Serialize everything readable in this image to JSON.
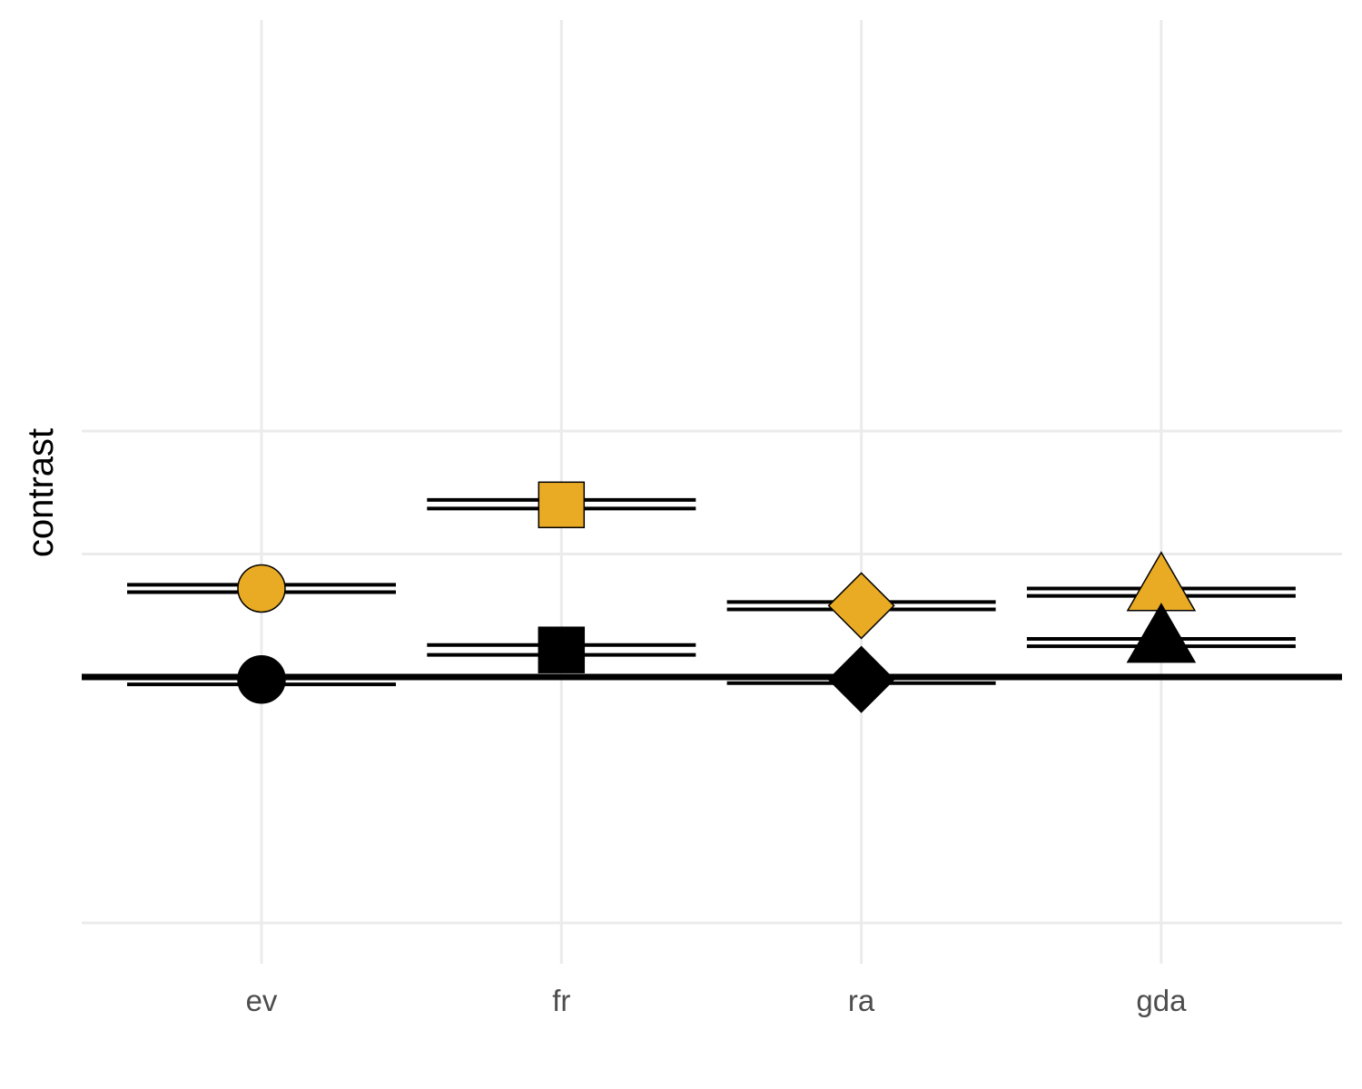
{
  "chart_data": {
    "type": "scatter",
    "title": "",
    "xlabel": "",
    "ylabel": "contrast",
    "categories": [
      "ev",
      "fr",
      "ra",
      "gda"
    ],
    "ylim": [
      -1.0,
      1.35
    ],
    "y_gridlines": [
      -1.0,
      0.0,
      0.5,
      1.0
    ],
    "reference_line": 0,
    "grid": true,
    "legend": "none",
    "colors": {
      "highlight": "#E9AB24",
      "base": "#000000",
      "grid": "#EBEBEB"
    },
    "series": [
      {
        "color": "#E9AB24",
        "points": [
          {
            "x": "ev",
            "y": 0.36,
            "lower": 0.345,
            "upper": 0.375,
            "shape": "circle"
          },
          {
            "x": "fr",
            "y": 0.7,
            "lower": 0.685,
            "upper": 0.72,
            "shape": "square"
          },
          {
            "x": "ra",
            "y": 0.29,
            "lower": 0.275,
            "upper": 0.305,
            "shape": "diamond"
          },
          {
            "x": "gda",
            "y": 0.36,
            "lower": 0.33,
            "upper": 0.36,
            "shape": "triangle"
          }
        ]
      },
      {
        "color": "#000000",
        "points": [
          {
            "x": "ev",
            "y": -0.01,
            "lower": -0.03,
            "upper": 0.0,
            "shape": "circle"
          },
          {
            "x": "fr",
            "y": 0.11,
            "lower": 0.09,
            "upper": 0.13,
            "shape": "square"
          },
          {
            "x": "ra",
            "y": -0.01,
            "lower": -0.025,
            "upper": 0.0,
            "shape": "diamond"
          },
          {
            "x": "gda",
            "y": 0.15,
            "lower": 0.125,
            "upper": 0.155,
            "shape": "triangle"
          }
        ]
      }
    ]
  }
}
